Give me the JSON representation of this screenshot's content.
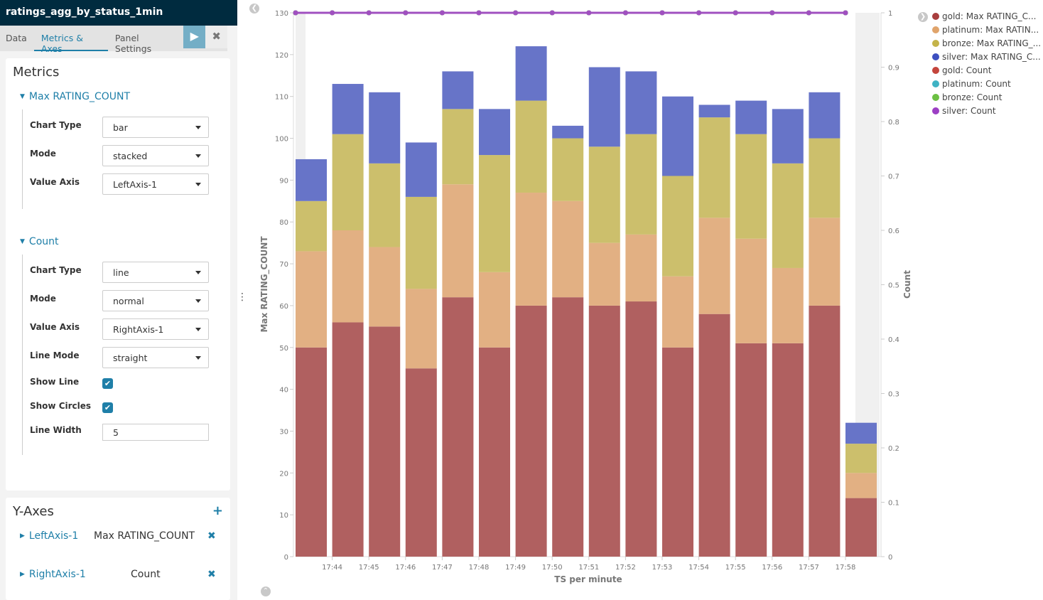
{
  "panel": {
    "title": "ratings_agg_by_status_1min",
    "tabs": [
      "Data",
      "Metrics & Axes",
      "Panel Settings"
    ],
    "active_tab": "Metrics & Axes"
  },
  "metrics": {
    "heading": "Metrics",
    "groups": [
      {
        "name": "Max RATING_COUNT",
        "fields": [
          {
            "label": "Chart Type",
            "value": "bar"
          },
          {
            "label": "Mode",
            "value": "stacked"
          },
          {
            "label": "Value Axis",
            "value": "LeftAxis-1"
          }
        ]
      },
      {
        "name": "Count",
        "fields": [
          {
            "label": "Chart Type",
            "value": "line"
          },
          {
            "label": "Mode",
            "value": "normal"
          },
          {
            "label": "Value Axis",
            "value": "RightAxis-1"
          },
          {
            "label": "Line Mode",
            "value": "straight"
          }
        ],
        "show_line_label": "Show Line",
        "show_line": true,
        "show_circles_label": "Show Circles",
        "show_circles": true,
        "line_width_label": "Line Width",
        "line_width": "5"
      }
    ]
  },
  "y_axes": {
    "heading": "Y-Axes",
    "add": "+",
    "items": [
      {
        "name": "LeftAxis-1",
        "title": "Max RATING_COUNT"
      },
      {
        "name": "RightAxis-1",
        "title": "Count"
      }
    ]
  },
  "legend": [
    {
      "label": "gold: Max RATING_C...",
      "color": "#a83e3e"
    },
    {
      "label": "platinum: Max RATIN...",
      "color": "#e0a46b"
    },
    {
      "label": "bronze: Max RATING_...",
      "color": "#c4b44a"
    },
    {
      "label": "silver: Max RATING_C...",
      "color": "#3d50c0"
    },
    {
      "label": "gold: Count",
      "color": "#c4453c"
    },
    {
      "label": "platinum: Count",
      "color": "#3fb3c4"
    },
    {
      "label": "bronze: Count",
      "color": "#6cc043"
    },
    {
      "label": "silver: Count",
      "color": "#9c3fc4"
    }
  ],
  "chart_data": {
    "type": "bar",
    "mode": "stacked",
    "xlabel": "TS per minute",
    "ylabel": "Max RATING_COUNT",
    "y2label": "Count",
    "ylim": [
      0,
      130
    ],
    "y2lim": [
      0,
      1
    ],
    "yticks": [
      0,
      10,
      20,
      30,
      40,
      50,
      60,
      70,
      80,
      90,
      100,
      110,
      120,
      130
    ],
    "y2ticks": [
      "0",
      "0.1",
      "0.2",
      "0.3",
      "0.4",
      "0.5",
      "0.6",
      "0.7",
      "0.8",
      "0.9",
      "1"
    ],
    "x_tick_labels": [
      "",
      "17:44",
      "17:45",
      "17:46",
      "17:47",
      "17:48",
      "17:49",
      "17:50",
      "17:51",
      "17:52",
      "17:53",
      "17:54",
      "17:55",
      "17:56",
      "17:57",
      "17:58"
    ],
    "series": [
      {
        "name": "gold: Max RATING_COUNT",
        "color": "#b06060",
        "values": [
          50,
          56,
          55,
          45,
          62,
          50,
          60,
          62,
          60,
          61,
          50,
          58,
          51,
          51,
          60,
          14
        ]
      },
      {
        "name": "platinum: Max RATING_COUNT",
        "color": "#e2b083",
        "values": [
          23,
          22,
          19,
          19,
          27,
          18,
          27,
          23,
          15,
          16,
          17,
          23,
          25,
          18,
          21,
          6
        ]
      },
      {
        "name": "bronze: Max RATING_COUNT",
        "color": "#ccbf6c",
        "values": [
          12,
          23,
          20,
          22,
          18,
          28,
          22,
          15,
          23,
          24,
          24,
          24,
          25,
          25,
          19,
          7
        ]
      },
      {
        "name": "silver: Max RATING_COUNT",
        "color": "#6774c8",
        "values": [
          10,
          12,
          17,
          13,
          9,
          11,
          13,
          3,
          19,
          15,
          19,
          3,
          8,
          13,
          11,
          5
        ]
      }
    ],
    "line_series": [
      {
        "name": "gold: Count",
        "color": "#c4453c",
        "values": [
          1,
          1,
          1,
          1,
          1,
          1,
          1,
          1,
          1,
          1,
          1,
          1,
          1,
          1,
          1,
          1
        ]
      },
      {
        "name": "platinum: Count",
        "color": "#3fb3c4",
        "values": [
          1,
          1,
          1,
          1,
          1,
          1,
          1,
          1,
          1,
          1,
          1,
          1,
          1,
          1,
          1,
          1
        ]
      },
      {
        "name": "bronze: Count",
        "color": "#6cc043",
        "values": [
          1,
          1,
          1,
          1,
          1,
          1,
          1,
          1,
          1,
          1,
          1,
          1,
          1,
          1,
          1,
          1
        ]
      },
      {
        "name": "silver: Count",
        "color": "#a050c0",
        "values": [
          1,
          1,
          1,
          1,
          1,
          1,
          1,
          1,
          1,
          1,
          1,
          1,
          1,
          1,
          1,
          1
        ]
      }
    ],
    "grid": false,
    "legend": "right"
  }
}
